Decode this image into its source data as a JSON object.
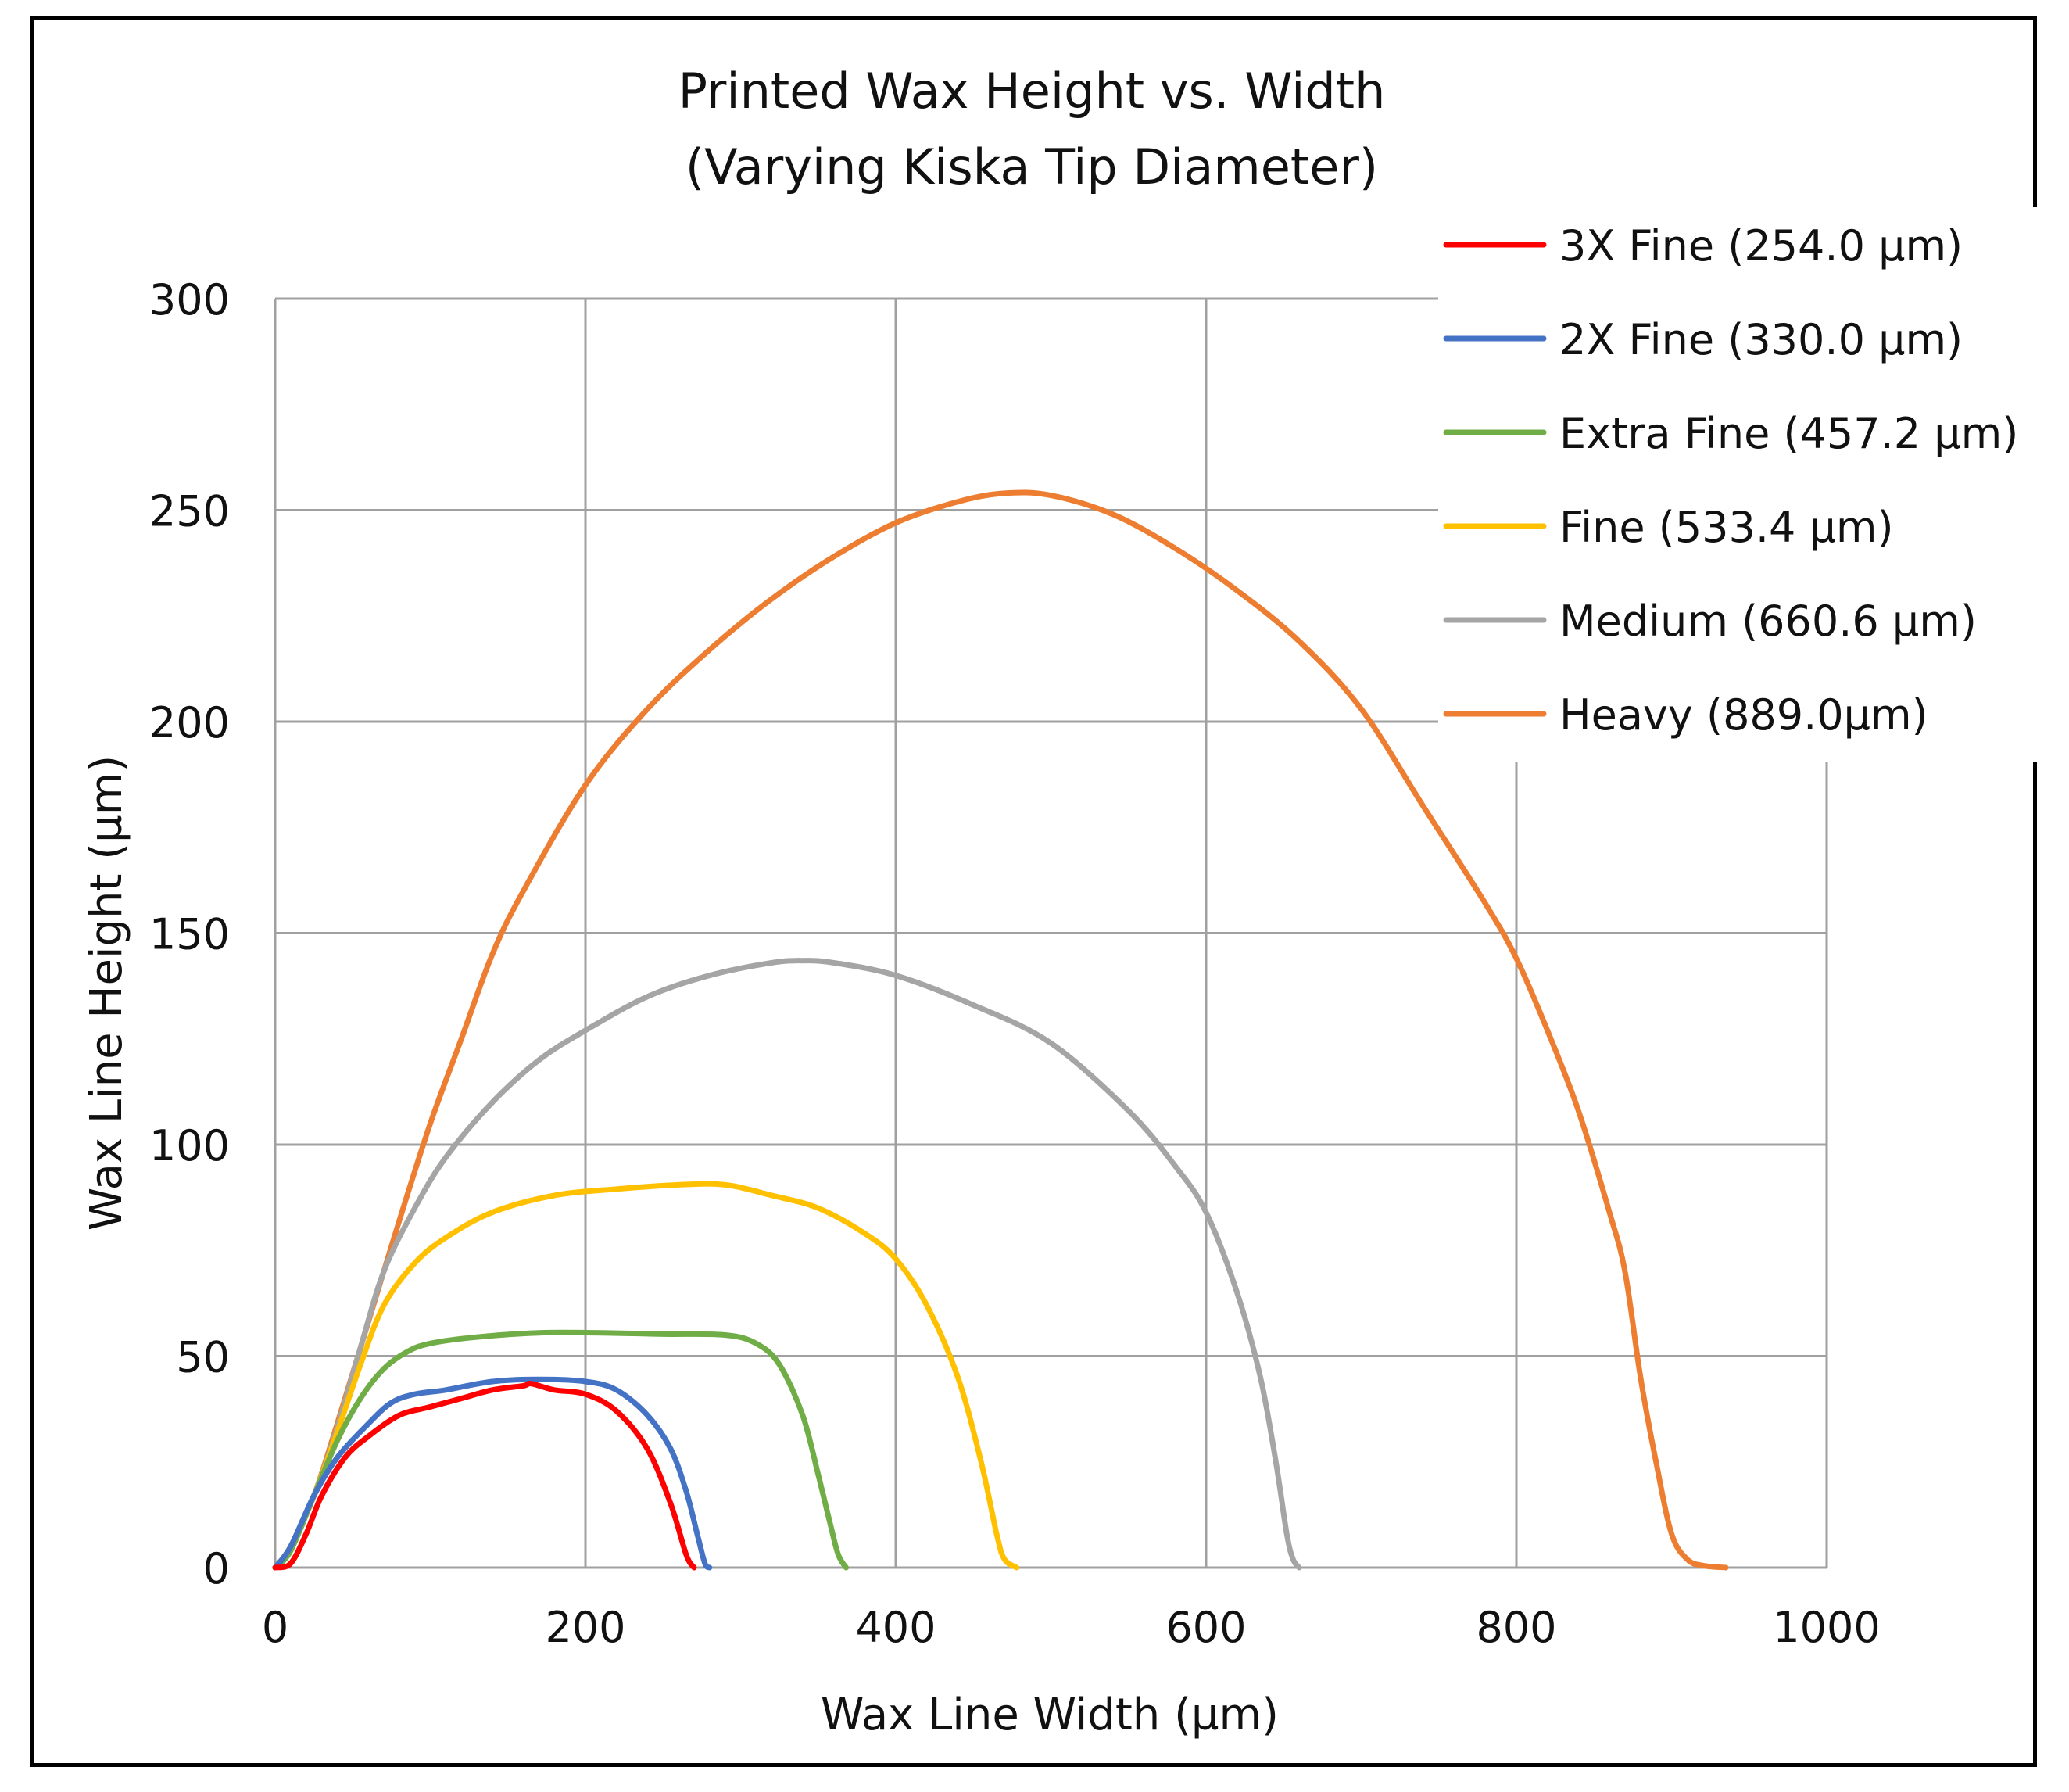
{
  "chart_data": {
    "type": "line",
    "title": [
      "Printed Wax Height vs. Width",
      "(Varying Kiska Tip Diameter)"
    ],
    "xlabel": "Wax Line Width (µm)",
    "ylabel": "Wax Line Height (µm)",
    "xlim": [
      0,
      1000
    ],
    "ylim": [
      0,
      300
    ],
    "xticks": [
      0,
      200,
      400,
      600,
      800,
      1000
    ],
    "yticks": [
      0,
      50,
      100,
      150,
      200,
      250,
      300
    ],
    "xtick_labels": [
      "0",
      "200",
      "400",
      "600",
      "800",
      "1000"
    ],
    "ytick_labels": [
      "0",
      "50",
      "100",
      "150",
      "200",
      "250",
      "300"
    ],
    "grid": true,
    "legend_position": "top-right",
    "series": [
      {
        "name": "3X Fine (254.0 µm)",
        "color": "#ff0000",
        "points": [
          [
            0,
            0
          ],
          [
            10,
            1
          ],
          [
            20,
            8
          ],
          [
            30,
            17
          ],
          [
            45,
            26
          ],
          [
            60,
            31
          ],
          [
            80,
            36
          ],
          [
            100,
            38
          ],
          [
            120,
            40
          ],
          [
            140,
            42
          ],
          [
            160,
            43
          ],
          [
            165,
            43.5
          ],
          [
            180,
            42
          ],
          [
            200,
            41
          ],
          [
            220,
            37
          ],
          [
            240,
            28
          ],
          [
            255,
            15
          ],
          [
            265,
            3
          ],
          [
            270,
            0
          ]
        ]
      },
      {
        "name": "2X Fine (330.0 µm)",
        "color": "#4472c4",
        "points": [
          [
            0,
            0
          ],
          [
            10,
            5
          ],
          [
            25,
            17
          ],
          [
            40,
            26
          ],
          [
            60,
            34
          ],
          [
            75,
            39
          ],
          [
            90,
            41
          ],
          [
            110,
            42
          ],
          [
            140,
            44
          ],
          [
            170,
            44.5
          ],
          [
            200,
            44
          ],
          [
            220,
            42
          ],
          [
            240,
            36
          ],
          [
            255,
            28
          ],
          [
            265,
            18
          ],
          [
            272,
            8
          ],
          [
            277,
            1
          ],
          [
            280,
            0
          ]
        ]
      },
      {
        "name": "Extra Fine (457.2 µm)",
        "color": "#70ad47",
        "points": [
          [
            0,
            0
          ],
          [
            10,
            4
          ],
          [
            25,
            17
          ],
          [
            40,
            30
          ],
          [
            55,
            40
          ],
          [
            70,
            47
          ],
          [
            85,
            51
          ],
          [
            100,
            53
          ],
          [
            130,
            54.5
          ],
          [
            170,
            55.5
          ],
          [
            210,
            55.5
          ],
          [
            250,
            55.2
          ],
          [
            290,
            55
          ],
          [
            310,
            53
          ],
          [
            325,
            48
          ],
          [
            340,
            36
          ],
          [
            350,
            22
          ],
          [
            358,
            10
          ],
          [
            363,
            3
          ],
          [
            368,
            0
          ]
        ]
      },
      {
        "name": "Fine (533.4 µm)",
        "color": "#ffc000",
        "points": [
          [
            0,
            0
          ],
          [
            10,
            5
          ],
          [
            25,
            17
          ],
          [
            40,
            32
          ],
          [
            55,
            48
          ],
          [
            70,
            62
          ],
          [
            90,
            72
          ],
          [
            110,
            78
          ],
          [
            140,
            84
          ],
          [
            180,
            88
          ],
          [
            220,
            89.5
          ],
          [
            260,
            90.5
          ],
          [
            290,
            90.5
          ],
          [
            320,
            88
          ],
          [
            350,
            85
          ],
          [
            380,
            79
          ],
          [
            400,
            73
          ],
          [
            420,
            62
          ],
          [
            440,
            45
          ],
          [
            455,
            25
          ],
          [
            465,
            8
          ],
          [
            470,
            2
          ],
          [
            478,
            0
          ]
        ]
      },
      {
        "name": "Medium (660.6 µm)",
        "color": "#a5a5a5",
        "points": [
          [
            0,
            0
          ],
          [
            10,
            5
          ],
          [
            25,
            17
          ],
          [
            40,
            33
          ],
          [
            55,
            52
          ],
          [
            70,
            70
          ],
          [
            90,
            85
          ],
          [
            110,
            97
          ],
          [
            140,
            110
          ],
          [
            170,
            120
          ],
          [
            200,
            127
          ],
          [
            240,
            135
          ],
          [
            280,
            140
          ],
          [
            320,
            143
          ],
          [
            340,
            143.5
          ],
          [
            360,
            143
          ],
          [
            400,
            140
          ],
          [
            450,
            133
          ],
          [
            500,
            124
          ],
          [
            550,
            108
          ],
          [
            580,
            95
          ],
          [
            600,
            84
          ],
          [
            620,
            65
          ],
          [
            635,
            45
          ],
          [
            645,
            25
          ],
          [
            652,
            8
          ],
          [
            656,
            2
          ],
          [
            660,
            0
          ]
        ]
      },
      {
        "name": "Heavy (889.0µm)",
        "color": "#ed7d31",
        "points": [
          [
            0,
            0
          ],
          [
            10,
            5
          ],
          [
            25,
            17
          ],
          [
            40,
            34
          ],
          [
            60,
            58
          ],
          [
            80,
            82
          ],
          [
            100,
            105
          ],
          [
            120,
            125
          ],
          [
            140,
            145
          ],
          [
            160,
            160
          ],
          [
            200,
            185
          ],
          [
            240,
            203
          ],
          [
            280,
            217
          ],
          [
            320,
            229
          ],
          [
            360,
            239
          ],
          [
            400,
            247
          ],
          [
            440,
            252
          ],
          [
            470,
            254
          ],
          [
            500,
            253.5
          ],
          [
            540,
            249
          ],
          [
            580,
            241
          ],
          [
            620,
            231
          ],
          [
            660,
            219
          ],
          [
            700,
            203
          ],
          [
            740,
            180
          ],
          [
            780,
            157
          ],
          [
            800,
            144
          ],
          [
            820,
            127
          ],
          [
            840,
            108
          ],
          [
            860,
            84
          ],
          [
            870,
            70
          ],
          [
            880,
            45
          ],
          [
            890,
            25
          ],
          [
            900,
            8
          ],
          [
            910,
            2
          ],
          [
            920,
            0.5
          ],
          [
            935,
            0
          ]
        ]
      }
    ]
  }
}
